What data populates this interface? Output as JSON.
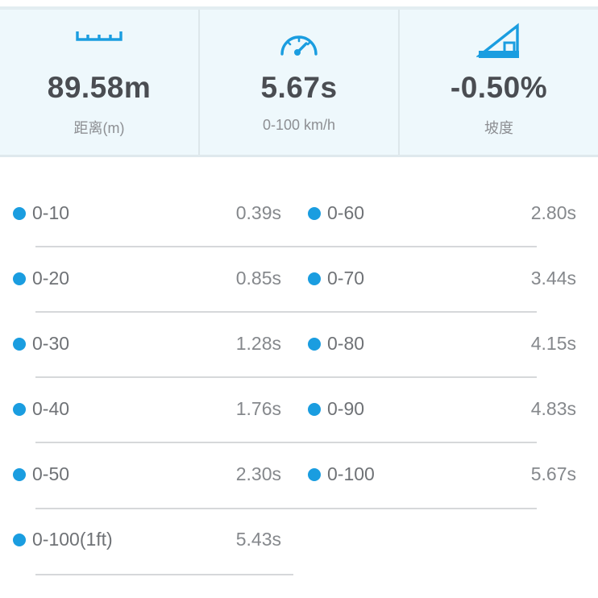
{
  "stats": {
    "distance": {
      "value": "89.58m",
      "label": "距离(m)",
      "icon": "ruler-icon"
    },
    "acceleration": {
      "value": "5.67s",
      "label": "0-100 km/h",
      "icon": "speedometer-icon"
    },
    "slope": {
      "value": "-0.50%",
      "label": "坡度",
      "icon": "slope-icon"
    }
  },
  "splits": {
    "left": [
      {
        "range": "0-10",
        "time": "0.39s"
      },
      {
        "range": "0-20",
        "time": "0.85s"
      },
      {
        "range": "0-30",
        "time": "1.28s"
      },
      {
        "range": "0-40",
        "time": "1.76s"
      },
      {
        "range": "0-50",
        "time": "2.30s"
      },
      {
        "range": "0-100(1ft)",
        "time": "5.43s"
      }
    ],
    "right": [
      {
        "range": "0-60",
        "time": "2.80s"
      },
      {
        "range": "0-70",
        "time": "3.44s"
      },
      {
        "range": "0-80",
        "time": "4.15s"
      },
      {
        "range": "0-90",
        "time": "4.83s"
      },
      {
        "range": "0-100",
        "time": "5.67s"
      }
    ]
  },
  "colors": {
    "accent": "#1a9de0",
    "panel_background": "#eef8fc",
    "value_text": "#4a4d52",
    "label_text": "#8d8f93"
  }
}
